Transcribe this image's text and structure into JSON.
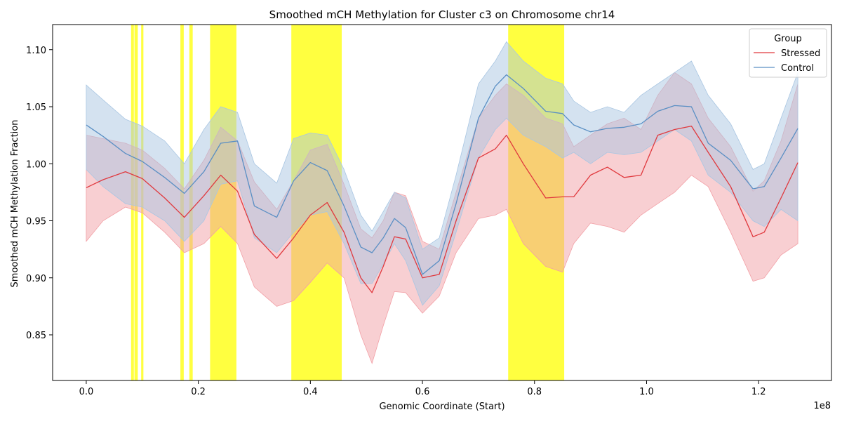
{
  "chart_data": {
    "type": "line",
    "title": "Smoothed mCH Methylation for Cluster c3 on Chromosome chr14",
    "xlabel": "Genomic Coordinate (Start)",
    "ylabel": "Smoothed mCH Methylation Fraction",
    "x_offset_label": "1e8",
    "xlim": [
      -0.06,
      1.33
    ],
    "ylim": [
      0.81,
      1.122
    ],
    "x_ticks": [
      0.0,
      0.2,
      0.4,
      0.6,
      0.8,
      1.0,
      1.2
    ],
    "x_tick_labels": [
      "0.0",
      "0.2",
      "0.4",
      "0.6",
      "0.8",
      "1.0",
      "1.2"
    ],
    "y_ticks": [
      0.85,
      0.9,
      0.95,
      1.0,
      1.05,
      1.1
    ],
    "y_tick_labels": [
      "0.85",
      "0.90",
      "0.95",
      "1.00",
      "1.05",
      "1.10"
    ],
    "grid": false,
    "legend": {
      "title": "Group",
      "placement": "top-right",
      "entries": [
        {
          "label": "Stressed",
          "color": "#e0393e"
        },
        {
          "label": "Control",
          "color": "#5a8fc4"
        }
      ]
    },
    "highlight_color": "#ffff00",
    "highlight_regions": [
      [
        0.08,
        0.085
      ],
      [
        0.086,
        0.092
      ],
      [
        0.098,
        0.102
      ],
      [
        0.168,
        0.174
      ],
      [
        0.184,
        0.19
      ],
      [
        0.221,
        0.268
      ],
      [
        0.366,
        0.456
      ],
      [
        0.753,
        0.853
      ]
    ],
    "series": [
      {
        "name": "Stressed",
        "color": "#e0393e",
        "band_color": "#f2a0a6",
        "x": [
          0.0,
          0.03,
          0.07,
          0.1,
          0.14,
          0.175,
          0.21,
          0.24,
          0.27,
          0.3,
          0.34,
          0.37,
          0.4,
          0.43,
          0.46,
          0.49,
          0.51,
          0.53,
          0.55,
          0.57,
          0.6,
          0.63,
          0.66,
          0.7,
          0.73,
          0.75,
          0.78,
          0.82,
          0.85,
          0.87,
          0.9,
          0.93,
          0.96,
          0.99,
          1.02,
          1.05,
          1.08,
          1.11,
          1.15,
          1.19,
          1.21,
          1.24,
          1.27
        ],
        "y": [
          0.979,
          0.986,
          0.993,
          0.987,
          0.97,
          0.953,
          0.972,
          0.99,
          0.976,
          0.938,
          0.917,
          0.935,
          0.955,
          0.966,
          0.94,
          0.9,
          0.887,
          0.91,
          0.936,
          0.934,
          0.9,
          0.903,
          0.95,
          1.005,
          1.013,
          1.025,
          1.0,
          0.97,
          0.971,
          0.971,
          0.99,
          0.997,
          0.988,
          0.99,
          1.025,
          1.03,
          1.033,
          1.01,
          0.98,
          0.936,
          0.94,
          0.97,
          1.001
        ],
        "lower": [
          0.932,
          0.95,
          0.962,
          0.957,
          0.94,
          0.922,
          0.93,
          0.945,
          0.93,
          0.892,
          0.875,
          0.88,
          0.896,
          0.913,
          0.9,
          0.85,
          0.825,
          0.858,
          0.888,
          0.887,
          0.869,
          0.884,
          0.922,
          0.952,
          0.955,
          0.96,
          0.93,
          0.91,
          0.905,
          0.93,
          0.948,
          0.945,
          0.94,
          0.955,
          0.965,
          0.975,
          0.99,
          0.98,
          0.94,
          0.897,
          0.9,
          0.92,
          0.93
        ],
        "upper": [
          1.025,
          1.022,
          1.018,
          1.012,
          0.996,
          0.978,
          1.003,
          1.032,
          1.02,
          0.984,
          0.96,
          0.985,
          1.012,
          1.017,
          0.982,
          0.943,
          0.935,
          0.95,
          0.975,
          0.972,
          0.932,
          0.925,
          0.975,
          1.04,
          1.06,
          1.07,
          1.06,
          1.04,
          1.035,
          1.015,
          1.025,
          1.035,
          1.04,
          1.03,
          1.06,
          1.08,
          1.07,
          1.04,
          1.015,
          0.976,
          0.985,
          1.02,
          1.07
        ]
      },
      {
        "name": "Control",
        "color": "#5a8fc4",
        "band_color": "#a9c6e2",
        "x": [
          0.0,
          0.03,
          0.07,
          0.1,
          0.14,
          0.175,
          0.21,
          0.24,
          0.27,
          0.3,
          0.34,
          0.37,
          0.4,
          0.43,
          0.46,
          0.49,
          0.51,
          0.53,
          0.55,
          0.57,
          0.6,
          0.63,
          0.66,
          0.7,
          0.73,
          0.75,
          0.78,
          0.82,
          0.85,
          0.87,
          0.9,
          0.93,
          0.96,
          0.99,
          1.02,
          1.05,
          1.08,
          1.11,
          1.15,
          1.19,
          1.21,
          1.24,
          1.27
        ],
        "y": [
          1.034,
          1.024,
          1.009,
          1.002,
          0.988,
          0.974,
          0.993,
          1.018,
          1.02,
          0.963,
          0.953,
          0.985,
          1.001,
          0.994,
          0.963,
          0.927,
          0.922,
          0.935,
          0.952,
          0.944,
          0.903,
          0.915,
          0.965,
          1.04,
          1.068,
          1.078,
          1.066,
          1.046,
          1.044,
          1.034,
          1.028,
          1.031,
          1.032,
          1.035,
          1.046,
          1.051,
          1.05,
          1.018,
          1.003,
          0.978,
          0.98,
          1.005,
          1.031
        ],
        "lower": [
          0.995,
          0.98,
          0.965,
          0.962,
          0.95,
          0.932,
          0.95,
          0.982,
          0.985,
          0.935,
          0.922,
          0.94,
          0.955,
          0.958,
          0.93,
          0.895,
          0.895,
          0.912,
          0.93,
          0.915,
          0.876,
          0.893,
          0.94,
          1.005,
          1.03,
          1.04,
          1.025,
          1.015,
          1.005,
          1.01,
          1.0,
          1.01,
          1.008,
          1.01,
          1.02,
          1.03,
          1.02,
          0.99,
          0.975,
          0.95,
          0.945,
          0.96,
          0.95
        ],
        "upper": [
          1.069,
          1.056,
          1.039,
          1.033,
          1.02,
          1.0,
          1.03,
          1.05,
          1.045,
          1.0,
          0.983,
          1.022,
          1.027,
          1.025,
          0.995,
          0.955,
          0.941,
          0.958,
          0.975,
          0.97,
          0.925,
          0.935,
          0.99,
          1.07,
          1.09,
          1.107,
          1.09,
          1.075,
          1.07,
          1.055,
          1.045,
          1.05,
          1.045,
          1.06,
          1.07,
          1.08,
          1.09,
          1.06,
          1.035,
          0.995,
          1.0,
          1.04,
          1.08
        ]
      }
    ]
  }
}
